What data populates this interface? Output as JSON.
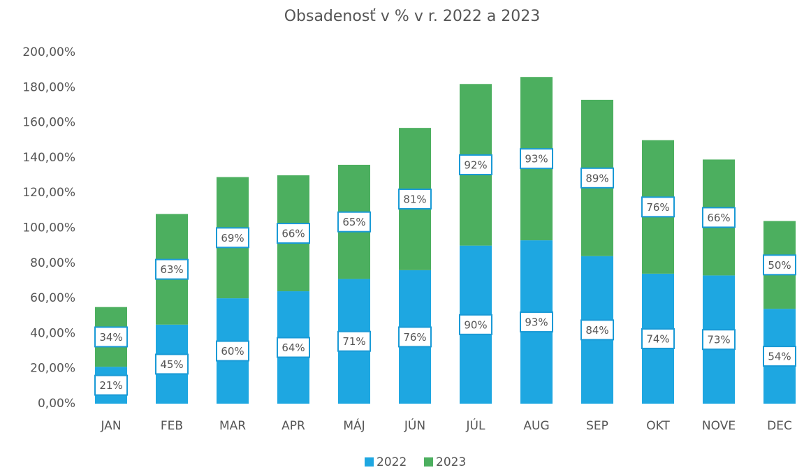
{
  "chart_data": {
    "type": "stacked_bar",
    "title": "Obsadenosť v % v r. 2022 a 2023",
    "categories": [
      "JAN",
      "FEB",
      "MAR",
      "APR",
      "MÁJ",
      "JÚN",
      "JÚL",
      "AUG",
      "SEP",
      "OKT",
      "NOVE",
      "DEC"
    ],
    "series": [
      {
        "name": "2022",
        "color": "#1ea7e1",
        "values": [
          21,
          45,
          60,
          64,
          71,
          76,
          90,
          93,
          84,
          74,
          73,
          54
        ],
        "value_labels": [
          "21%",
          "45%",
          "60%",
          "64%",
          "71%",
          "76%",
          "90%",
          "93%",
          "84%",
          "74%",
          "73%",
          "54%"
        ]
      },
      {
        "name": "2023",
        "color": "#4caf5f",
        "values": [
          34,
          63,
          69,
          66,
          65,
          81,
          92,
          93,
          89,
          76,
          66,
          50
        ],
        "value_labels": [
          "34%",
          "63%",
          "69%",
          "66%",
          "65%",
          "81%",
          "92%",
          "93%",
          "89%",
          "76%",
          "66%",
          "50%"
        ]
      }
    ],
    "ylim": [
      0,
      200
    ],
    "yticks": [
      {
        "value": 0,
        "label": "0,00%"
      },
      {
        "value": 20,
        "label": "20,00%"
      },
      {
        "value": 40,
        "label": "40,00%"
      },
      {
        "value": 60,
        "label": "60,00%"
      },
      {
        "value": 80,
        "label": "80,00%"
      },
      {
        "value": 100,
        "label": "100,00%"
      },
      {
        "value": 120,
        "label": "120,00%"
      },
      {
        "value": 140,
        "label": "140,00%"
      },
      {
        "value": 160,
        "label": "160,00%"
      },
      {
        "value": 180,
        "label": "180,00%"
      },
      {
        "value": 200,
        "label": "200,00%"
      }
    ],
    "grid": false,
    "legend": "bottom"
  }
}
